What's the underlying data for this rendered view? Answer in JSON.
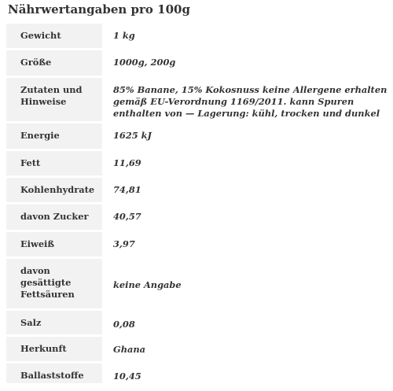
{
  "title": "Nährwertangaben pro 100g",
  "rows": [
    {
      "label": "Gewicht",
      "value": "1 kg"
    },
    {
      "label": "Größe",
      "value": "1000g, 200g"
    },
    {
      "label": "Zutaten und Hinweise",
      "value": "85% Banane, 15% Kokosnuss keine Allergene erhalten gemäß EU-Verordnung 1169/2011. kann Spuren enthalten von — Lagerung: kühl, trocken und dunkel"
    },
    {
      "label": "Energie",
      "value": "1625 kJ"
    },
    {
      "label": "Fett",
      "value": "11,69"
    },
    {
      "label": "Kohlenhydrate",
      "value": "74,81"
    },
    {
      "label": "davon Zucker",
      "value": "40,57"
    },
    {
      "label": "Eiweiß",
      "value": "3,97"
    },
    {
      "label": "davon gesättigte Fettsäuren",
      "value": "keine Angabe"
    },
    {
      "label": "Salz",
      "value": "0,08"
    },
    {
      "label": "Herkunft",
      "value": "Ghana"
    },
    {
      "label": "Ballaststoffe",
      "value": "10,45"
    }
  ]
}
